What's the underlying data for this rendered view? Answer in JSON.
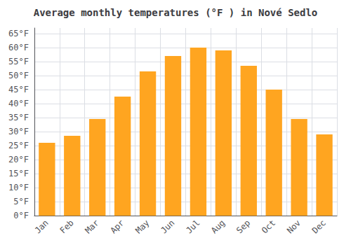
{
  "chart_data": {
    "type": "bar",
    "title": "Average monthly temperatures (°F ) in Nové Sedlo",
    "categories": [
      "Jan",
      "Feb",
      "Mar",
      "Apr",
      "May",
      "Jun",
      "Jul",
      "Aug",
      "Sep",
      "Oct",
      "Nov",
      "Dec"
    ],
    "values": [
      26,
      28.5,
      34.5,
      42.5,
      51.5,
      57,
      60,
      59,
      53.5,
      45,
      34.5,
      29
    ],
    "color": "#FFA520",
    "ylim": [
      0,
      67
    ],
    "yticks": [
      {
        "value": 0,
        "label": "0°F"
      },
      {
        "value": 5,
        "label": "5°F"
      },
      {
        "value": 10,
        "label": "10°F"
      },
      {
        "value": 15,
        "label": "15°F"
      },
      {
        "value": 20,
        "label": "20°F"
      },
      {
        "value": 25,
        "label": "25°F"
      },
      {
        "value": 30,
        "label": "30°F"
      },
      {
        "value": 35,
        "label": "35°F"
      },
      {
        "value": 40,
        "label": "40°F"
      },
      {
        "value": 45,
        "label": "45°F"
      },
      {
        "value": 50,
        "label": "50°F"
      },
      {
        "value": 55,
        "label": "55°F"
      },
      {
        "value": 60,
        "label": "60°F"
      },
      {
        "value": 65,
        "label": "65°F"
      }
    ],
    "grid": true
  }
}
